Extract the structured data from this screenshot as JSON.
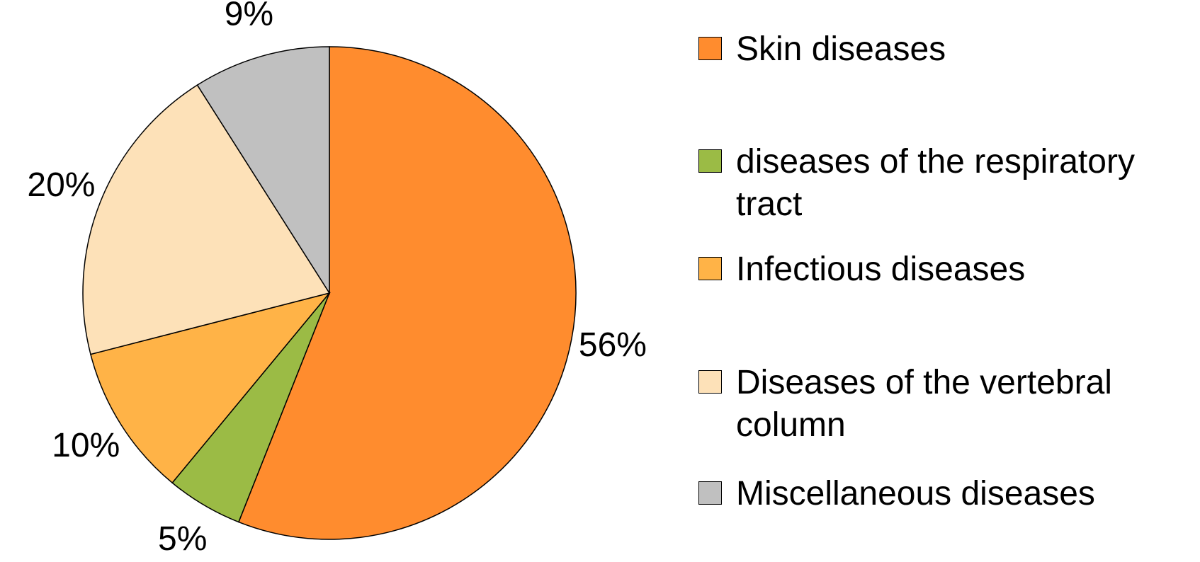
{
  "chart_data": {
    "type": "pie",
    "categories": [
      "Skin diseases",
      "diseases of the respiratory tract",
      "Infectious diseases",
      "Diseases of the vertebral column",
      "Miscellaneous diseases"
    ],
    "values": [
      56,
      5,
      10,
      20,
      9
    ],
    "value_labels": [
      "56%",
      "5%",
      "10%",
      "20%",
      "9%"
    ],
    "colors": [
      "#ff8c2e",
      "#9bbb45",
      "#ffb347",
      "#fde1b8",
      "#c0c0c0"
    ],
    "legend": "right"
  }
}
